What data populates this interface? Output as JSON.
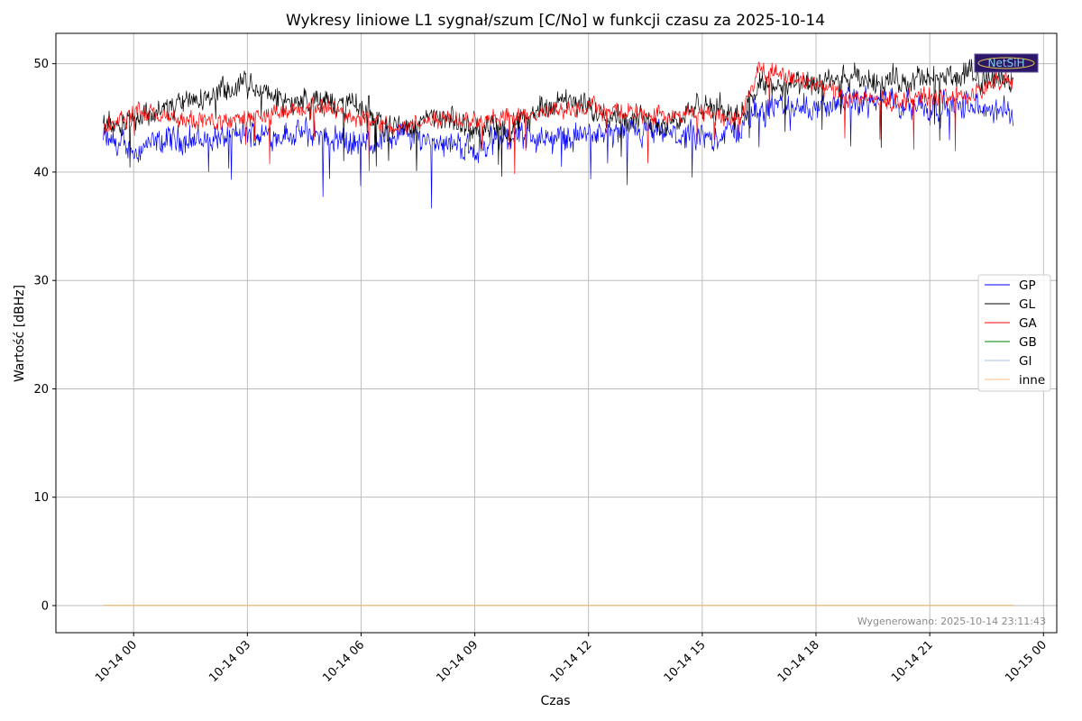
{
  "chart_data": {
    "type": "line",
    "title": "Wykresy liniowe L1 sygnał/szum [C/No] w funkcji czasu za 2025-10-14",
    "xlabel": "Czas",
    "ylabel": "Wartość [dBHz]",
    "x_is_time": true,
    "x_tick_labels": [
      "10-14 00",
      "10-14 03",
      "10-14 06",
      "10-14 09",
      "10-14 12",
      "10-14 15",
      "10-14 18",
      "10-14 21",
      "10-15 00"
    ],
    "x_ticks_hours": [
      0,
      3,
      6,
      9,
      12,
      15,
      18,
      21,
      24
    ],
    "xlim_hours": [
      -2.05,
      24.35
    ],
    "x_data_range_hours": [
      -0.8,
      23.2
    ],
    "y_ticks": [
      0,
      10,
      20,
      30,
      40,
      50
    ],
    "ylim": [
      -2.5,
      52.8
    ],
    "grid": true,
    "legend_position": "center-right",
    "series": [
      {
        "name": "GP",
        "color": "#0000ff",
        "x": [
          -0.8,
          0,
          1,
          2,
          3,
          4,
          5,
          6,
          7,
          8,
          9,
          10,
          11,
          12,
          13,
          14,
          15,
          16,
          16.5,
          17,
          18,
          19,
          20,
          21,
          22,
          23,
          23.2
        ],
        "y": [
          43,
          42,
          43,
          43,
          43.5,
          43.5,
          43.5,
          42.5,
          43.5,
          43,
          42,
          43.5,
          43,
          43.5,
          43.5,
          43.5,
          43,
          44,
          46,
          46,
          46,
          46.5,
          46.5,
          46,
          46,
          45.5,
          45.5
        ]
      },
      {
        "name": "GL",
        "color": "#000000",
        "x": [
          -0.8,
          0,
          1,
          2,
          3,
          4,
          5,
          6,
          7,
          8,
          9,
          10,
          11,
          12,
          13,
          14,
          15,
          16,
          16.5,
          17,
          18,
          19,
          20,
          21,
          22,
          23,
          23.2
        ],
        "y": [
          44.5,
          45,
          46,
          47,
          48,
          46.5,
          46.5,
          46,
          44,
          45,
          44,
          44,
          46.5,
          46,
          45,
          44.5,
          46,
          45.5,
          48,
          48,
          48,
          48.5,
          48.5,
          48.5,
          49,
          48.5,
          48.5
        ]
      },
      {
        "name": "GA",
        "color": "#ff0000",
        "x": [
          -0.8,
          0,
          1,
          2,
          3,
          4,
          5,
          6,
          7,
          8,
          9,
          10,
          11,
          12,
          13,
          14,
          15,
          16,
          16.5,
          17,
          18,
          19,
          20,
          21,
          22,
          23,
          23.2
        ],
        "y": [
          44,
          45.5,
          45,
          44.5,
          45,
          45.5,
          46,
          45,
          44,
          45,
          45,
          45,
          45.5,
          46,
          45.5,
          45,
          45.5,
          45,
          49.5,
          49,
          48,
          47,
          46.5,
          47,
          47,
          48.5,
          48.5
        ]
      },
      {
        "name": "GB",
        "color": "#008000",
        "x": [
          -0.8,
          23.2
        ],
        "y": [
          0,
          0
        ]
      },
      {
        "name": "GI",
        "color": "#a6c8ea",
        "x": [
          -0.8,
          23.2
        ],
        "y": [
          0,
          0
        ]
      },
      {
        "name": "inne",
        "color": "#ffbf80",
        "x": [
          -0.8,
          23.2
        ],
        "y": [
          0,
          0
        ]
      }
    ],
    "footer": "Wygenerowano: 2025-10-14 23:11:43"
  },
  "logo": {
    "text": "NetSiH"
  }
}
